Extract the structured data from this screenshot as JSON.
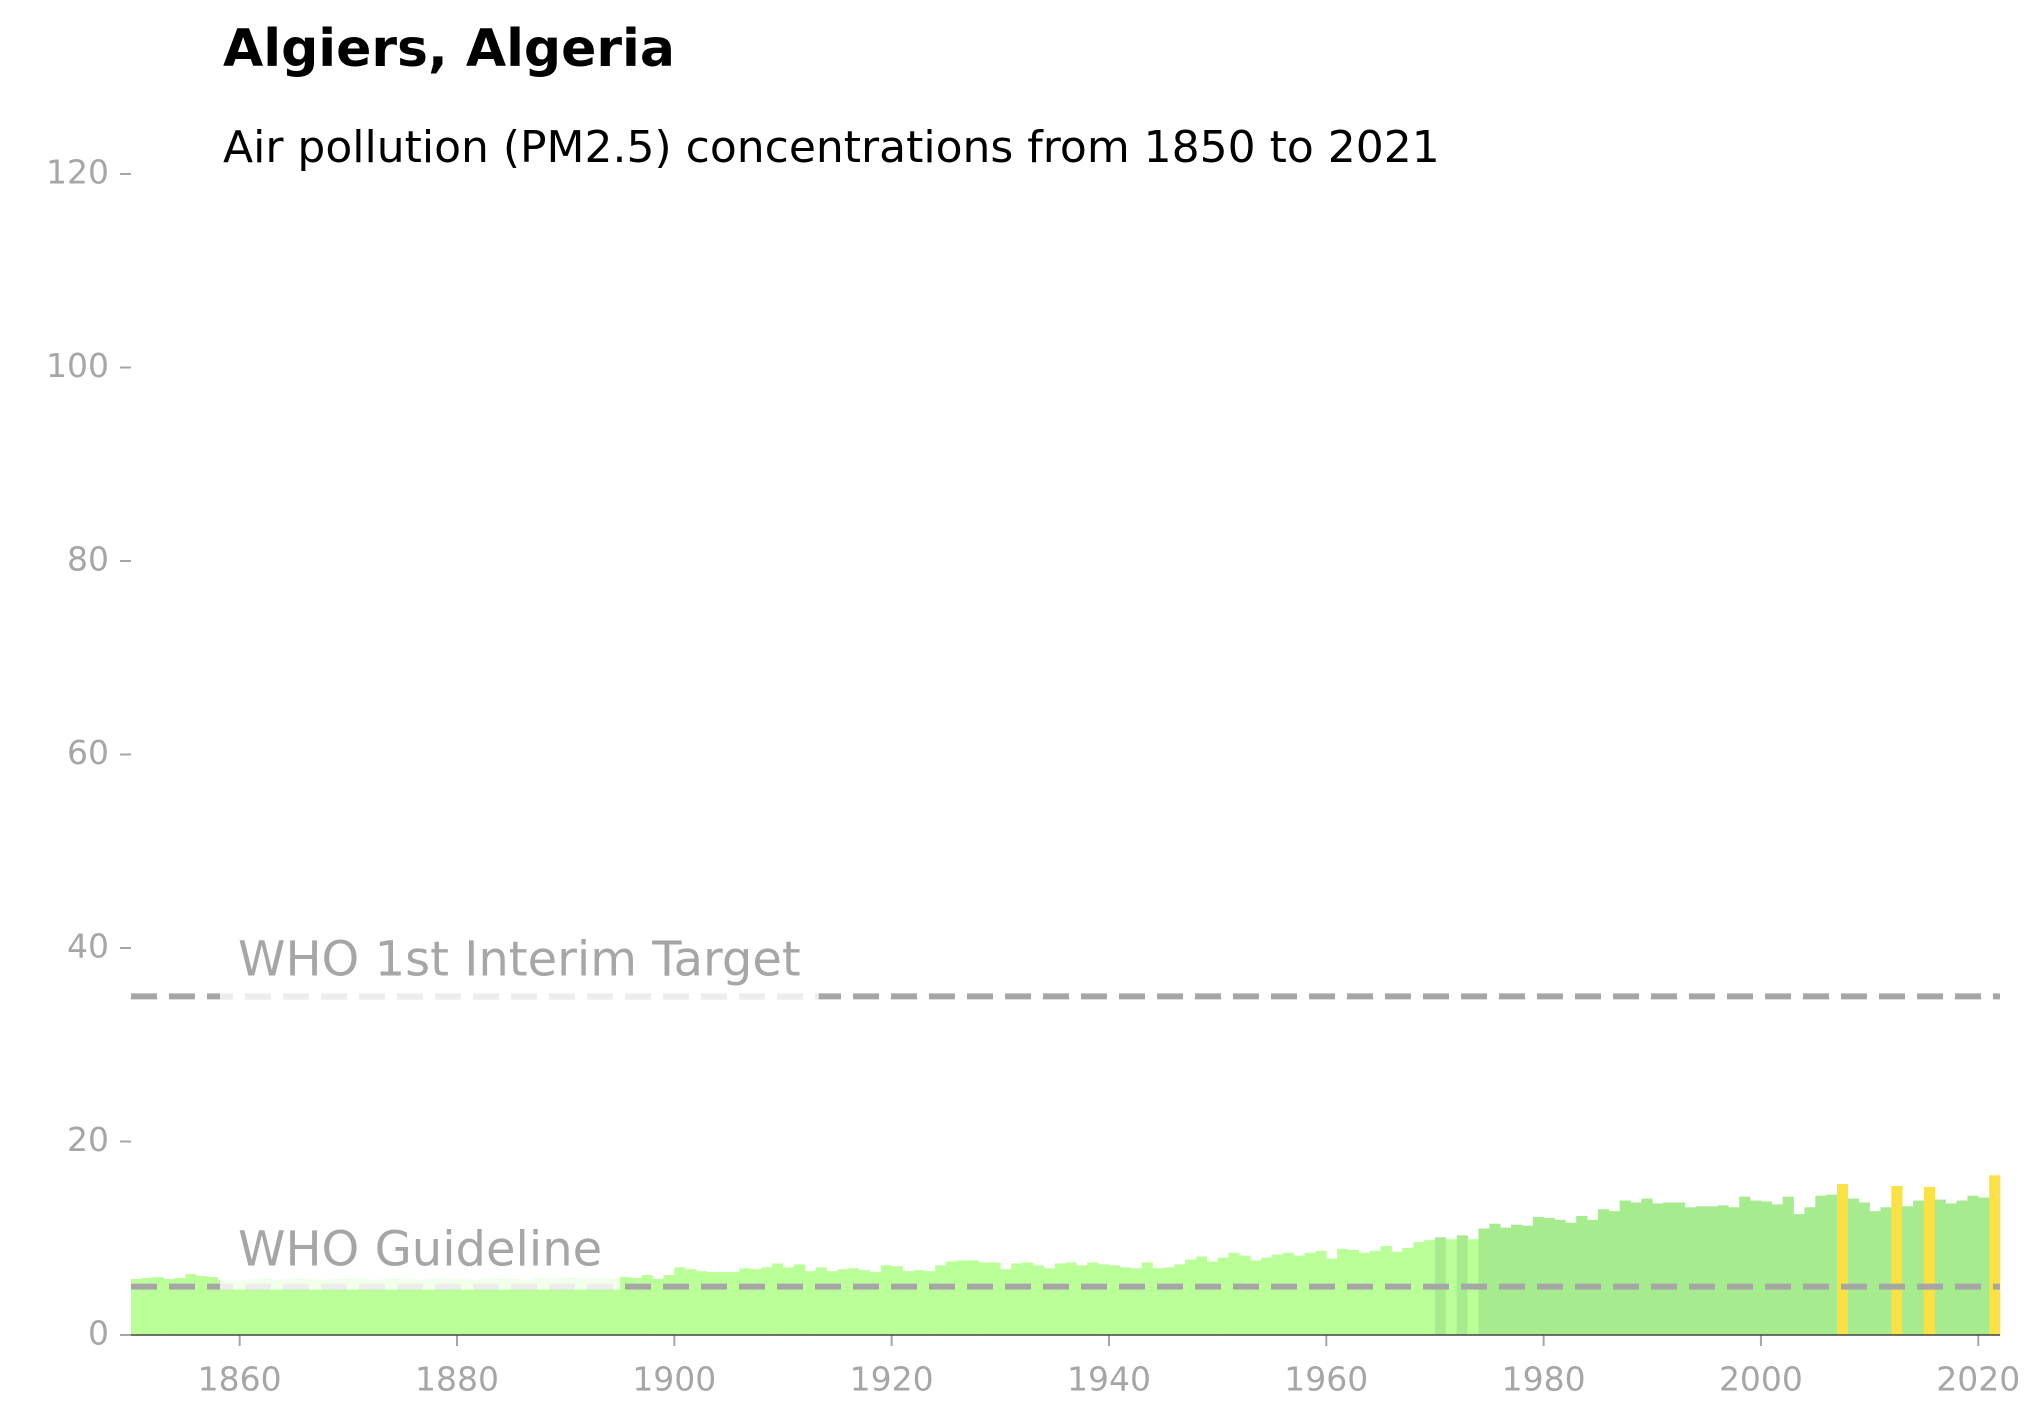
{
  "chart_data": {
    "type": "bar",
    "title": "Algiers, Algeria",
    "subtitle": "Air pollution (PM2.5) concentrations from 1850 to 2021",
    "x": [
      1850,
      1851,
      1852,
      1853,
      1854,
      1855,
      1856,
      1857,
      1858,
      1859,
      1860,
      1861,
      1862,
      1863,
      1864,
      1865,
      1866,
      1867,
      1868,
      1869,
      1870,
      1871,
      1872,
      1873,
      1874,
      1875,
      1876,
      1877,
      1878,
      1879,
      1880,
      1881,
      1882,
      1883,
      1884,
      1885,
      1886,
      1887,
      1888,
      1889,
      1890,
      1891,
      1892,
      1893,
      1894,
      1895,
      1896,
      1897,
      1898,
      1899,
      1900,
      1901,
      1902,
      1903,
      1904,
      1905,
      1906,
      1907,
      1908,
      1909,
      1910,
      1911,
      1912,
      1913,
      1914,
      1915,
      1916,
      1917,
      1918,
      1919,
      1920,
      1921,
      1922,
      1923,
      1924,
      1925,
      1926,
      1927,
      1928,
      1929,
      1930,
      1931,
      1932,
      1933,
      1934,
      1935,
      1936,
      1937,
      1938,
      1939,
      1940,
      1941,
      1942,
      1943,
      1944,
      1945,
      1946,
      1947,
      1948,
      1949,
      1950,
      1951,
      1952,
      1953,
      1954,
      1955,
      1956,
      1957,
      1958,
      1959,
      1960,
      1961,
      1962,
      1963,
      1964,
      1965,
      1966,
      1967,
      1968,
      1969,
      1970,
      1971,
      1972,
      1973,
      1974,
      1975,
      1976,
      1977,
      1978,
      1979,
      1980,
      1981,
      1982,
      1983,
      1984,
      1985,
      1986,
      1987,
      1988,
      1989,
      1990,
      1991,
      1992,
      1993,
      1994,
      1995,
      1996,
      1997,
      1998,
      1999,
      2000,
      2001,
      2002,
      2003,
      2004,
      2005,
      2006,
      2007,
      2008,
      2009,
      2010,
      2011,
      2012,
      2013,
      2014,
      2015,
      2016,
      2017,
      2018,
      2019,
      2020,
      2021
    ],
    "values": [
      5.8,
      5.9,
      6.0,
      5.8,
      5.9,
      6.3,
      6.1,
      6.0,
      5.7,
      5.6,
      5.7,
      5.8,
      5.9,
      5.7,
      5.8,
      5.9,
      5.8,
      5.7,
      5.8,
      5.9,
      5.9,
      5.8,
      5.7,
      5.8,
      5.9,
      5.8,
      5.7,
      5.8,
      5.9,
      5.8,
      5.8,
      5.7,
      5.8,
      5.9,
      5.9,
      5.8,
      5.7,
      5.9,
      5.8,
      5.9,
      6.0,
      5.8,
      5.9,
      5.8,
      5.9,
      6.0,
      5.9,
      6.2,
      5.8,
      6.2,
      7.0,
      6.8,
      6.6,
      6.5,
      6.5,
      6.5,
      6.9,
      6.8,
      7.0,
      7.4,
      7.0,
      7.3,
      6.6,
      7.0,
      6.6,
      6.8,
      6.9,
      6.7,
      6.5,
      7.2,
      7.1,
      6.6,
      6.7,
      6.6,
      7.2,
      7.6,
      7.7,
      7.7,
      7.5,
      7.5,
      6.8,
      7.4,
      7.5,
      7.2,
      6.9,
      7.4,
      7.5,
      7.2,
      7.5,
      7.3,
      7.2,
      7.0,
      6.9,
      7.5,
      6.9,
      7.0,
      7.3,
      7.8,
      8.1,
      7.6,
      8.0,
      8.5,
      8.2,
      7.7,
      8.0,
      8.3,
      8.5,
      8.2,
      8.5,
      8.7,
      7.9,
      8.9,
      8.8,
      8.5,
      8.7,
      9.2,
      8.6,
      9.0,
      9.6,
      9.8,
      10.1,
      9.9,
      10.3,
      9.9,
      11.0,
      11.5,
      11.1,
      11.4,
      11.3,
      12.2,
      12.1,
      11.9,
      11.6,
      12.3,
      11.9,
      13.0,
      12.8,
      13.9,
      13.7,
      14.1,
      13.6,
      13.7,
      13.7,
      13.2,
      13.3,
      13.3,
      13.4,
      13.2,
      14.3,
      13.9,
      13.8,
      13.5,
      14.3,
      12.5,
      13.2,
      14.4,
      14.5,
      15.6,
      14.1,
      13.7,
      12.8,
      13.2,
      15.4,
      13.3,
      13.9,
      15.3,
      14.0,
      13.6,
      13.9,
      14.4,
      14.2,
      16.5
    ],
    "colors": [
      "#bbff99",
      "#bbff99",
      "#bbff99",
      "#bbff99",
      "#bbff99",
      "#bbff99",
      "#bbff99",
      "#bbff99",
      "#bbff99",
      "#bbff99",
      "#bbff99",
      "#bbff99",
      "#bbff99",
      "#bbff99",
      "#bbff99",
      "#bbff99",
      "#bbff99",
      "#bbff99",
      "#bbff99",
      "#bbff99",
      "#bbff99",
      "#bbff99",
      "#bbff99",
      "#bbff99",
      "#bbff99",
      "#bbff99",
      "#bbff99",
      "#bbff99",
      "#bbff99",
      "#bbff99",
      "#bbff99",
      "#bbff99",
      "#bbff99",
      "#bbff99",
      "#bbff99",
      "#bbff99",
      "#bbff99",
      "#bbff99",
      "#bbff99",
      "#bbff99",
      "#bbff99",
      "#bbff99",
      "#bbff99",
      "#bbff99",
      "#bbff99",
      "#bbff99",
      "#bbff99",
      "#bbff99",
      "#bbff99",
      "#bbff99",
      "#bbff99",
      "#bbff99",
      "#bbff99",
      "#bbff99",
      "#bbff99",
      "#bbff99",
      "#bbff99",
      "#bbff99",
      "#bbff99",
      "#bbff99",
      "#bbff99",
      "#bbff99",
      "#bbff99",
      "#bbff99",
      "#bbff99",
      "#bbff99",
      "#bbff99",
      "#bbff99",
      "#bbff99",
      "#bbff99",
      "#bbff99",
      "#bbff99",
      "#bbff99",
      "#bbff99",
      "#bbff99",
      "#bbff99",
      "#bbff99",
      "#bbff99",
      "#bbff99",
      "#bbff99",
      "#bbff99",
      "#bbff99",
      "#bbff99",
      "#bbff99",
      "#bbff99",
      "#bbff99",
      "#bbff99",
      "#bbff99",
      "#bbff99",
      "#bbff99",
      "#bbff99",
      "#bbff99",
      "#bbff99",
      "#bbff99",
      "#bbff99",
      "#bbff99",
      "#bbff99",
      "#bbff99",
      "#bbff99",
      "#bbff99",
      "#bbff99",
      "#bbff99",
      "#bbff99",
      "#bbff99",
      "#bbff99",
      "#bbff99",
      "#bbff99",
      "#bbff99",
      "#bbff99",
      "#bbff99",
      "#bbff99",
      "#bbff99",
      "#bbff99",
      "#bbff99",
      "#bbff99",
      "#bbff99",
      "#bbff99",
      "#bbff99",
      "#bbff99",
      "#bbff99",
      "#a6ec8e",
      "#bbff99",
      "#a6ec8e",
      "#bbff99",
      "#a6ec8e",
      "#a6ec8e",
      "#a6ec8e",
      "#a6ec8e",
      "#a6ec8e",
      "#a6ec8e",
      "#a6ec8e",
      "#a6ec8e",
      "#a6ec8e",
      "#a6ec8e",
      "#a6ec8e",
      "#a6ec8e",
      "#a6ec8e",
      "#a6ec8e",
      "#a6ec8e",
      "#a6ec8e",
      "#a6ec8e",
      "#a6ec8e",
      "#a6ec8e",
      "#a6ec8e",
      "#a6ec8e",
      "#a6ec8e",
      "#a6ec8e",
      "#a6ec8e",
      "#a6ec8e",
      "#a6ec8e",
      "#a6ec8e",
      "#a6ec8e",
      "#a6ec8e",
      "#a6ec8e",
      "#a6ec8e",
      "#a6ec8e",
      "#a6ec8e",
      "#fbe143",
      "#a6ec8e",
      "#a6ec8e",
      "#a6ec8e",
      "#a6ec8e",
      "#fbe143",
      "#a6ec8e",
      "#a6ec8e",
      "#fbe143",
      "#a6ec8e",
      "#a6ec8e",
      "#a6ec8e",
      "#a6ec8e",
      "#a6ec8e",
      "#fbe143"
    ],
    "reference_lines": [
      {
        "value": 35,
        "label": "WHO 1st Interim Target"
      },
      {
        "value": 5,
        "label": "WHO Guideline"
      }
    ],
    "xlim": [
      1850,
      2022
    ],
    "ylim": [
      0,
      120
    ],
    "xticks": [
      1860,
      1880,
      1900,
      1920,
      1940,
      1960,
      1980,
      2000,
      2020
    ],
    "yticks": [
      0,
      20,
      40,
      60,
      80,
      100,
      120
    ]
  }
}
